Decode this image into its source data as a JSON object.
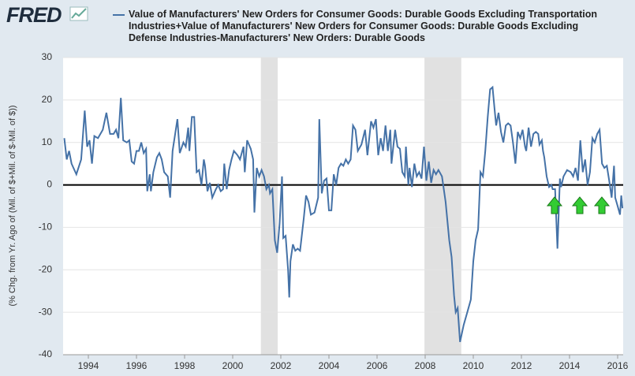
{
  "chart_data": {
    "type": "line",
    "logo": "FRED",
    "ylabel": "(% Chg. from Yr. Ago of (Mil. of $+Mil. of $-Mil. of $))",
    "series": [
      {
        "name": "Value of Manufacturers' New Orders for Consumer Goods: Durable Goods Excluding Transportation Industries+Value of Manufacturers' New Orders for Consumer Goods: Durable Goods Excluding Defense Industries-Manufacturers' New Orders: Durable Goods",
        "color": "#4572a7",
        "x": [
          1993.0,
          1993.1,
          1993.2,
          1993.3,
          1993.5,
          1993.7,
          1993.85,
          1993.95,
          1994.05,
          1994.15,
          1994.25,
          1994.4,
          1994.6,
          1994.75,
          1994.9,
          1995.05,
          1995.15,
          1995.25,
          1995.35,
          1995.45,
          1995.6,
          1995.7,
          1995.8,
          1995.9,
          1996.0,
          1996.1,
          1996.2,
          1996.3,
          1996.4,
          1996.45,
          1996.55,
          1996.6,
          1996.7,
          1996.85,
          1996.95,
          1997.05,
          1997.15,
          1997.3,
          1997.4,
          1997.5,
          1997.7,
          1997.8,
          1997.95,
          1998.05,
          1998.15,
          1998.2,
          1998.3,
          1998.4,
          1998.5,
          1998.6,
          1998.7,
          1998.8,
          1998.85,
          1998.95,
          1999.05,
          1999.15,
          1999.3,
          1999.4,
          1999.5,
          1999.6,
          1999.65,
          1999.75,
          1999.85,
          1999.95,
          2000.05,
          2000.2,
          2000.3,
          2000.45,
          2000.5,
          2000.6,
          2000.75,
          2000.85,
          2000.9,
          2001.0,
          2001.1,
          2001.2,
          2001.3,
          2001.4,
          2001.5,
          2001.55,
          2001.65,
          2001.75,
          2001.85,
          2001.95,
          2002.05,
          2002.1,
          2002.2,
          2002.3,
          2002.35,
          2002.4,
          2002.5,
          2002.6,
          2002.7,
          2002.8,
          2002.95,
          2003.05,
          2003.15,
          2003.25,
          2003.4,
          2003.55,
          2003.6,
          2003.7,
          2003.8,
          2003.9,
          2004.0,
          2004.1,
          2004.2,
          2004.3,
          2004.4,
          2004.5,
          2004.6,
          2004.7,
          2004.8,
          2004.9,
          2005.0,
          2005.1,
          2005.2,
          2005.35,
          2005.5,
          2005.6,
          2005.75,
          2005.85,
          2005.95,
          2006.05,
          2006.15,
          2006.25,
          2006.35,
          2006.45,
          2006.55,
          2006.6,
          2006.75,
          2006.85,
          2006.95,
          2007.05,
          2007.15,
          2007.2,
          2007.3,
          2007.35,
          2007.45,
          2007.55,
          2007.65,
          2007.75,
          2007.85,
          2007.95,
          2008.05,
          2008.15,
          2008.25,
          2008.35,
          2008.45,
          2008.55,
          2008.7,
          2008.85,
          2009.0,
          2009.1,
          2009.2,
          2009.27,
          2009.35,
          2009.45,
          2009.6,
          2009.75,
          2009.9,
          2010.0,
          2010.1,
          2010.2,
          2010.3,
          2010.4,
          2010.5,
          2010.6,
          2010.7,
          2010.8,
          2010.9,
          2010.95,
          2011.05,
          2011.15,
          2011.25,
          2011.35,
          2011.45,
          2011.55,
          2011.65,
          2011.75,
          2011.85,
          2011.95,
          2012.05,
          2012.15,
          2012.2,
          2012.3,
          2012.4,
          2012.5,
          2012.6,
          2012.7,
          2012.75,
          2012.85,
          2012.9,
          2012.95,
          2013.05,
          2013.15,
          2013.25,
          2013.3,
          2013.4,
          2013.5,
          2013.6,
          2013.65,
          2013.75,
          2013.9,
          2014.05,
          2014.15,
          2014.25,
          2014.35,
          2014.45,
          2014.55,
          2014.65,
          2014.75,
          2014.85,
          2014.95,
          2015.05,
          2015.15,
          2015.25,
          2015.35,
          2015.45,
          2015.55,
          2015.65,
          2015.75,
          2015.85,
          2015.9,
          2016.0,
          2016.1,
          2016.15,
          2016.2
        ],
        "values": [
          11,
          6,
          8,
          5,
          2.5,
          6,
          17.5,
          9,
          10.5,
          5,
          11.5,
          11,
          13,
          17,
          12,
          12,
          13,
          11,
          20.5,
          10.5,
          10,
          10.5,
          5.5,
          5,
          8,
          8,
          10,
          7.5,
          8.5,
          -1.5,
          2.5,
          -1.5,
          3,
          6.5,
          7.5,
          6,
          3,
          2,
          -3,
          8,
          15.5,
          7.5,
          10,
          9,
          13.5,
          8,
          16,
          16,
          3,
          3.5,
          0,
          6,
          4.5,
          -1.5,
          0.5,
          -3,
          -1,
          0,
          -1.5,
          -1,
          5,
          -1,
          3.5,
          6,
          8,
          7,
          6,
          9,
          3,
          10.5,
          8.5,
          6,
          -6.5,
          4,
          2,
          3.5,
          2,
          -1,
          0,
          -2,
          -1,
          -13,
          -16,
          -9,
          2,
          -12.5,
          -12,
          -20,
          -26.5,
          -18,
          -14,
          -15.5,
          -15,
          -15.5,
          -8,
          -2.5,
          -4,
          -7,
          -6.5,
          -3,
          15.5,
          -2,
          1,
          1.5,
          -6,
          -6,
          2.5,
          0,
          4,
          5,
          4.5,
          6,
          5,
          6,
          14,
          13,
          8,
          9.5,
          13,
          7,
          15,
          13.5,
          15.5,
          7,
          11,
          8,
          14,
          8,
          13,
          5,
          13,
          9,
          8.5,
          3,
          2,
          9,
          0,
          4,
          -0.5,
          5,
          2,
          3,
          1.5,
          9,
          1,
          5.5,
          0.5,
          3.5,
          2.5,
          3.5,
          2,
          -4,
          -13,
          -17,
          -26,
          -30,
          -29,
          -37,
          -33,
          -30,
          -27,
          -18,
          -13,
          -10.5,
          3,
          2,
          8,
          16,
          22.5,
          23,
          17,
          14,
          17,
          12.5,
          10,
          14,
          14.5,
          14,
          10,
          5,
          12.5,
          11,
          13,
          9,
          8,
          13.5,
          9,
          12,
          12.5,
          12,
          9.5,
          10.5,
          8,
          6.5,
          2,
          -0.5,
          0,
          -1,
          -1,
          -15,
          1.5,
          -0.5,
          2,
          3.5,
          3,
          2,
          4,
          1,
          10.5,
          3,
          6,
          0,
          3,
          11,
          10,
          12,
          13,
          5,
          4,
          4.5,
          1,
          -3,
          4.5,
          -3,
          -5,
          -7,
          -2.5,
          -5.5
        ]
      }
    ],
    "recessions": [
      [
        2001.17,
        2001.87
      ],
      [
        2007.97,
        2009.5
      ]
    ],
    "xlim": [
      1992.95,
      2016.23
    ],
    "xticks": [
      {
        "value": 1994,
        "label": "1994"
      },
      {
        "value": 1996,
        "label": "1996"
      },
      {
        "value": 1998,
        "label": "1998"
      },
      {
        "value": 2000,
        "label": "2000"
      },
      {
        "value": 2002,
        "label": "2002"
      },
      {
        "value": 2004,
        "label": "2004"
      },
      {
        "value": 2006,
        "label": "2006"
      },
      {
        "value": 2008,
        "label": "2008"
      },
      {
        "value": 2010,
        "label": "2010"
      },
      {
        "value": 2012,
        "label": "2012"
      },
      {
        "value": 2014,
        "label": "2014"
      },
      {
        "value": 2016,
        "label": "2016"
      }
    ],
    "ylim": [
      -40,
      30
    ],
    "yticks": [
      -40,
      -30,
      -20,
      -10,
      0,
      10,
      20,
      30
    ],
    "grid": true
  }
}
